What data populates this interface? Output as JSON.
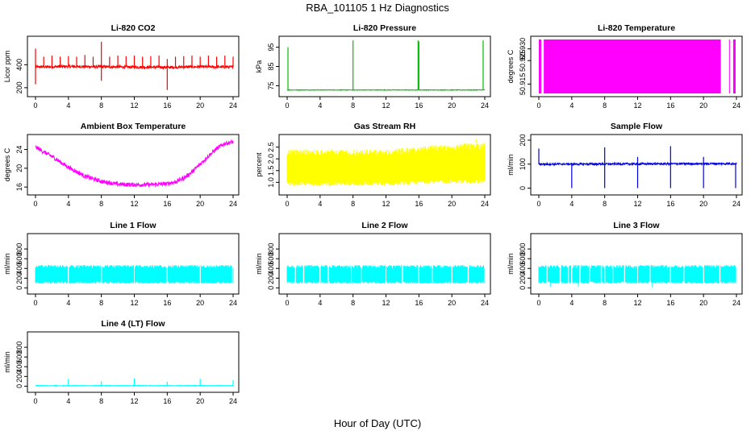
{
  "title": "RBA_101105  1 Hz Diagnostics",
  "x_axis_title": "Hour of Day (UTC)",
  "chart_data": [
    {
      "id": "co2",
      "type": "line",
      "title": "Li-820 CO2",
      "ylabel": "Licor ppm",
      "color": "#ff0000",
      "xlim": [
        0,
        24
      ],
      "ylim": [
        150,
        620
      ],
      "xticks": [
        0,
        4,
        8,
        12,
        16,
        20,
        24
      ],
      "yticks": [
        200,
        400
      ],
      "y_tick_labels": [
        "200",
        "400"
      ],
      "series": [
        {
          "baseline": [
            [
              0,
              380
            ],
            [
              4,
              385
            ],
            [
              8,
              382
            ],
            [
              12,
              380
            ],
            [
              16,
              378
            ],
            [
              20,
              382
            ],
            [
              24,
              380
            ]
          ],
          "noise": 12,
          "spikes": [
            [
              0,
              540
            ],
            [
              0,
              230
            ],
            [
              1,
              470
            ],
            [
              2,
              480
            ],
            [
              3,
              470
            ],
            [
              4,
              475
            ],
            [
              5,
              470
            ],
            [
              6,
              485
            ],
            [
              7,
              470
            ],
            [
              8,
              600
            ],
            [
              8,
              260
            ],
            [
              9,
              470
            ],
            [
              10,
              480
            ],
            [
              11,
              475
            ],
            [
              12,
              480
            ],
            [
              13,
              470
            ],
            [
              14,
              475
            ],
            [
              15,
              480
            ],
            [
              16,
              180
            ],
            [
              16,
              450
            ],
            [
              17,
              470
            ],
            [
              18,
              475
            ],
            [
              19,
              480
            ],
            [
              20,
              470
            ],
            [
              21,
              480
            ],
            [
              22,
              470
            ],
            [
              23,
              480
            ],
            [
              24,
              470
            ]
          ]
        }
      ]
    },
    {
      "id": "pressure",
      "type": "line",
      "title": "Li-820 Pressure",
      "ylabel": "kPa",
      "color": "#00bb00",
      "xlim": [
        0,
        24
      ],
      "ylim": [
        71,
        99
      ],
      "xticks": [
        0,
        4,
        8,
        12,
        16,
        20,
        24
      ],
      "yticks": [
        75,
        85,
        95
      ],
      "y_tick_labels": [
        "75",
        "85",
        "95"
      ],
      "series": [
        {
          "baseline": [
            [
              0,
              72.8
            ],
            [
              24,
              72.8
            ]
          ],
          "noise": 0.15,
          "spikes": [
            [
              0.1,
              95
            ],
            [
              8,
              98.5
            ],
            [
              15.9,
              98.5
            ],
            [
              16,
              98
            ],
            [
              23.8,
              98.5
            ]
          ]
        }
      ]
    },
    {
      "id": "licor-temp",
      "type": "area",
      "title": "Li-820 Temperature",
      "ylabel": "degrees C",
      "color": "#ff00ff",
      "xlim": [
        0,
        24
      ],
      "ylim": [
        50.911,
        50.934
      ],
      "xticks": [
        0,
        4,
        8,
        12,
        16,
        20,
        24
      ],
      "yticks": [
        50.915,
        50.925,
        50.93
      ],
      "y_tick_labels": [
        "50.915",
        "50.925",
        "50.930"
      ],
      "series": [
        {
          "band": [
            50.911,
            50.934
          ],
          "segments": [
            [
              0,
              0.3
            ],
            [
              0.6,
              22.1
            ],
            [
              23.1,
              23.2
            ],
            [
              23.6,
              23.9
            ]
          ]
        }
      ]
    },
    {
      "id": "box-temp",
      "type": "line",
      "title": "Ambient Box Temperature",
      "ylabel": "degrees C",
      "color": "#ff00ff",
      "xlim": [
        0,
        24
      ],
      "ylim": [
        15,
        26.5
      ],
      "xticks": [
        0,
        4,
        8,
        12,
        16,
        20,
        24
      ],
      "yticks": [
        16,
        20,
        24
      ],
      "y_tick_labels": [
        "16",
        "20",
        "24"
      ],
      "series": [
        {
          "baseline": [
            [
              0,
              24.5
            ],
            [
              2,
              22.5
            ],
            [
              4,
              20.2
            ],
            [
              6,
              18.3
            ],
            [
              8,
              17.2
            ],
            [
              10,
              16.6
            ],
            [
              12,
              16.5
            ],
            [
              14,
              16.5
            ],
            [
              16,
              16.7
            ],
            [
              17,
              17.1
            ],
            [
              18,
              17.9
            ],
            [
              19,
              19.2
            ],
            [
              20,
              20.9
            ],
            [
              21,
              22.6
            ],
            [
              22,
              24.2
            ],
            [
              23,
              25.3
            ],
            [
              24,
              25.6
            ]
          ],
          "noise": 0.45,
          "spikes": []
        }
      ]
    },
    {
      "id": "rh",
      "type": "line",
      "title": "Gas Stream RH",
      "ylabel": "percent",
      "color": "#ffff00",
      "xlim": [
        0,
        24
      ],
      "ylim": [
        0.6,
        2.9
      ],
      "xticks": [
        0,
        4,
        8,
        12,
        16,
        20,
        24
      ],
      "yticks": [
        1.0,
        1.5,
        2.0,
        2.5
      ],
      "y_tick_labels": [
        "1.0",
        "1.5",
        "2.0",
        "2.5"
      ],
      "series": [
        {
          "envelope_low": [
            [
              0,
              0.85
            ],
            [
              12,
              0.85
            ],
            [
              18,
              0.95
            ],
            [
              24,
              0.95
            ]
          ],
          "envelope_high": [
            [
              0,
              2.4
            ],
            [
              12,
              2.4
            ],
            [
              18,
              2.6
            ],
            [
              24,
              2.7
            ]
          ],
          "spikes": [
            [
              23,
              2.85
            ]
          ]
        }
      ]
    },
    {
      "id": "sample-flow",
      "type": "line",
      "title": "Sample Flow",
      "ylabel": "ml/min",
      "color": "#0000dd",
      "xlim": [
        0,
        24
      ],
      "ylim": [
        -15,
        210
      ],
      "xticks": [
        0,
        4,
        8,
        12,
        16,
        20,
        24
      ],
      "yticks": [
        0,
        100,
        200
      ],
      "y_tick_labels": [
        "0",
        "100",
        "200"
      ],
      "series": [
        {
          "baseline": [
            [
              0,
              100
            ],
            [
              24,
              102
            ]
          ],
          "noise": 4,
          "spikes": [
            [
              0,
              165
            ],
            [
              4,
              0
            ],
            [
              8,
              170
            ],
            [
              8,
              0
            ],
            [
              12,
              130
            ],
            [
              12,
              0
            ],
            [
              16,
              175
            ],
            [
              16,
              0
            ],
            [
              20,
              130
            ],
            [
              20,
              0
            ],
            [
              23.9,
              0
            ]
          ]
        }
      ]
    },
    {
      "id": "line1",
      "type": "line",
      "title": "Line 1 Flow",
      "ylabel": "ml/min",
      "color": "#00ffff",
      "xlim": [
        0,
        24
      ],
      "ylim": [
        -60,
        1050
      ],
      "xticks": [
        0,
        4,
        8,
        12,
        16,
        20,
        24
      ],
      "yticks": [
        0,
        200,
        400,
        600,
        800
      ],
      "y_tick_labels": [
        "0",
        "200",
        "400",
        "600",
        "800"
      ],
      "series": [
        {
          "envelope_low": [
            [
              0,
              90
            ],
            [
              24,
              90
            ]
          ],
          "envelope_high": [
            [
              0,
              470
            ],
            [
              24,
              470
            ]
          ],
          "gaps": [
            4,
            8,
            12,
            16,
            20,
            23.9
          ]
        }
      ]
    },
    {
      "id": "line2",
      "type": "line",
      "title": "Line 2 Flow",
      "ylabel": "ml/min",
      "color": "#00ffff",
      "xlim": [
        0,
        24
      ],
      "ylim": [
        -60,
        1050
      ],
      "xticks": [
        0,
        4,
        8,
        12,
        16,
        20,
        24
      ],
      "yticks": [
        0,
        200,
        400,
        600,
        800
      ],
      "y_tick_labels": [
        "0",
        "200",
        "400",
        "600",
        "800"
      ],
      "series": [
        {
          "envelope_low": [
            [
              0,
              90
            ],
            [
              24,
              90
            ]
          ],
          "envelope_high": [
            [
              0,
              470
            ],
            [
              24,
              470
            ]
          ],
          "gaps": [
            1,
            2,
            4,
            5,
            7.8,
            9,
            12,
            14,
            16,
            17.6,
            20,
            22,
            24
          ]
        }
      ]
    },
    {
      "id": "line3",
      "type": "line",
      "title": "Line 3 Flow",
      "ylabel": "ml/min",
      "color": "#00ffff",
      "xlim": [
        0,
        24
      ],
      "ylim": [
        -60,
        1050
      ],
      "xticks": [
        0,
        4,
        8,
        12,
        16,
        20,
        24
      ],
      "yticks": [
        0,
        200,
        400,
        600,
        800
      ],
      "y_tick_labels": [
        "0",
        "200",
        "400",
        "600",
        "800"
      ],
      "series": [
        {
          "envelope_low": [
            [
              0,
              90
            ],
            [
              24,
              90
            ]
          ],
          "envelope_high": [
            [
              0,
              470
            ],
            [
              24,
              470
            ]
          ],
          "gaps": [
            1,
            2.6,
            3.6,
            4,
            5,
            6.2,
            7.6,
            8,
            9,
            10.4,
            12,
            13.5,
            16,
            17.6,
            20,
            22,
            24
          ],
          "dips": [
            [
              1.4,
              20
            ],
            [
              4.8,
              30
            ],
            [
              13.8,
              10
            ]
          ]
        }
      ]
    },
    {
      "id": "line4",
      "type": "line",
      "title": "Line 4 (LT) Flow",
      "ylabel": "ml/min",
      "color": "#00ffff",
      "xlim": [
        0,
        24
      ],
      "ylim": [
        -60,
        1050
      ],
      "xticks": [
        0,
        4,
        8,
        12,
        16,
        20,
        24
      ],
      "yticks": [
        0,
        200,
        400,
        600,
        800
      ],
      "y_tick_labels": [
        "0",
        "200",
        "400",
        "600",
        "800"
      ],
      "series": [
        {
          "baseline": [
            [
              0,
              10
            ],
            [
              24,
              10
            ]
          ],
          "noise": 6,
          "spikes": [
            [
              4,
              150
            ],
            [
              8,
              100
            ],
            [
              12,
              160
            ],
            [
              16,
              90
            ],
            [
              20,
              150
            ],
            [
              24,
              120
            ]
          ]
        }
      ]
    }
  ]
}
